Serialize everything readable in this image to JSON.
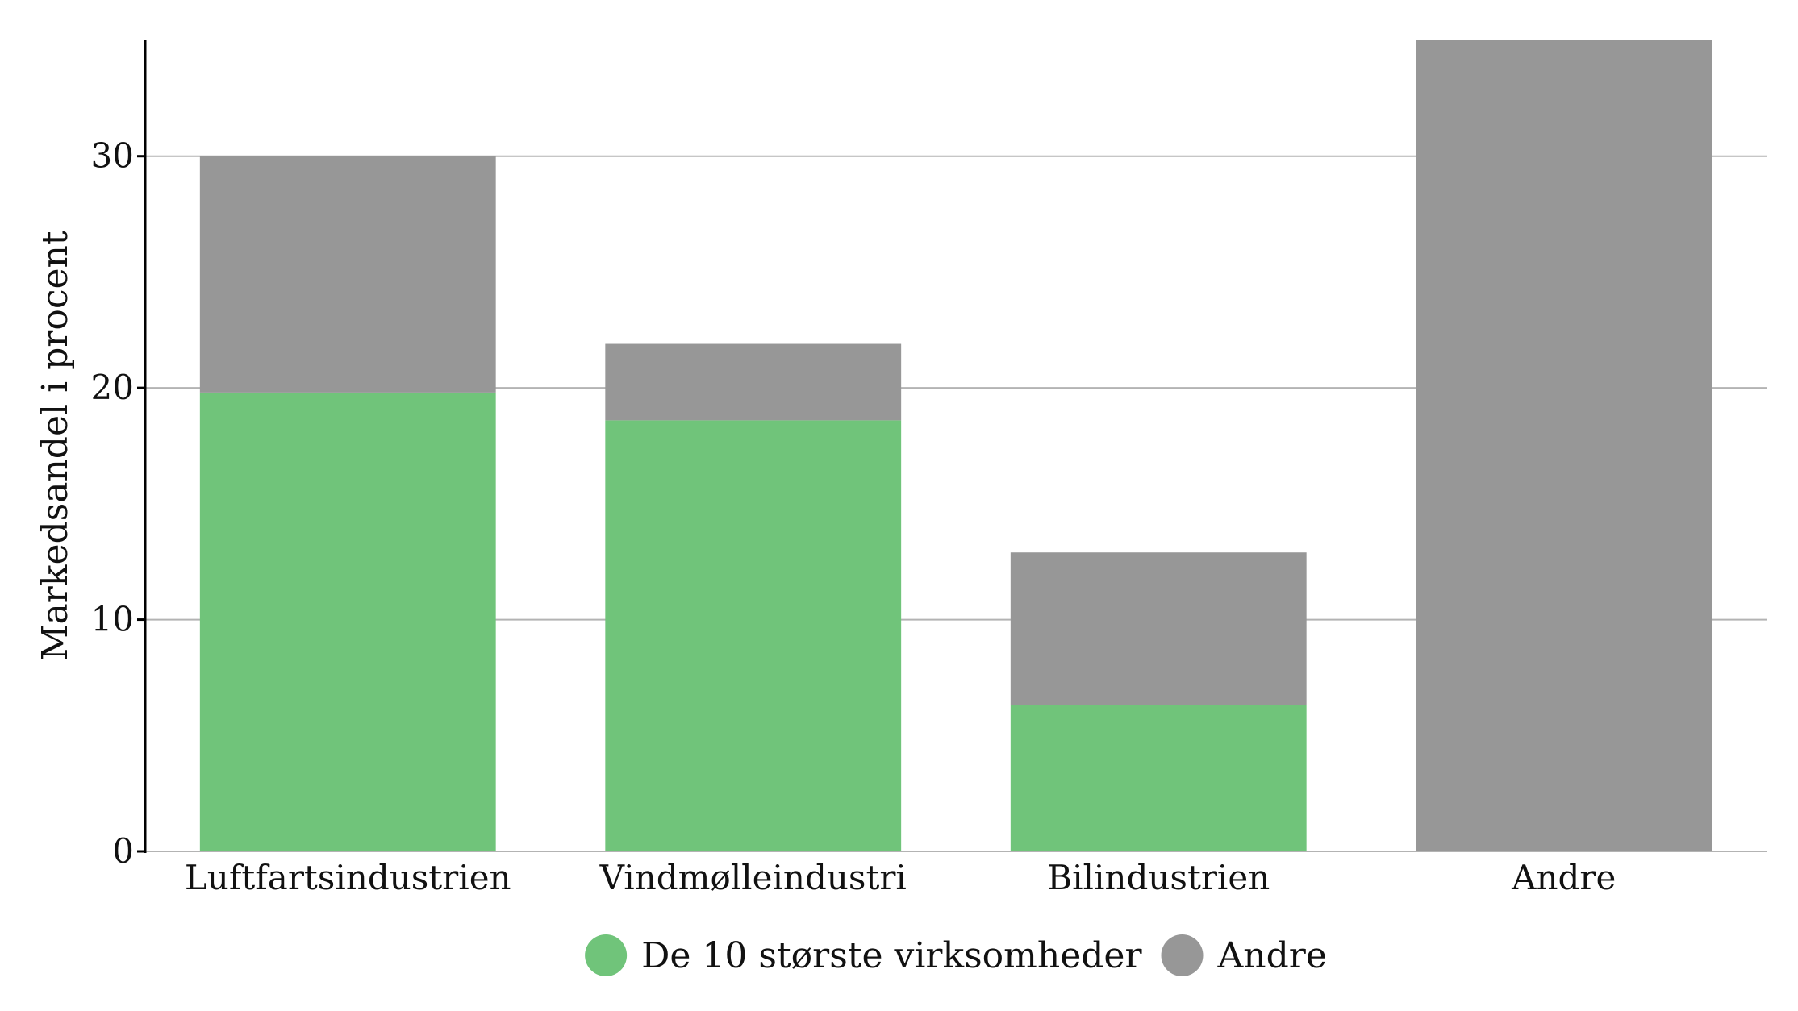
{
  "chart_data": {
    "type": "bar",
    "stacked": true,
    "title": "",
    "xlabel": "",
    "ylabel": "Markedsandel i procent",
    "categories": [
      "Luftfartsindustrien",
      "Vindmølleindustri",
      "Bilindustrien",
      "Andre"
    ],
    "series": [
      {
        "name": "De 10 største virksomheder",
        "color": "#70c47a",
        "values": [
          19.8,
          18.6,
          6.3,
          0
        ]
      },
      {
        "name": "Andre",
        "color": "#979797",
        "values": [
          10.2,
          3.3,
          6.6,
          35.0
        ]
      }
    ],
    "ylim": [
      0,
      35
    ],
    "yticks": [
      0,
      10,
      20,
      30
    ],
    "grid": true,
    "legend_position": "bottom"
  }
}
